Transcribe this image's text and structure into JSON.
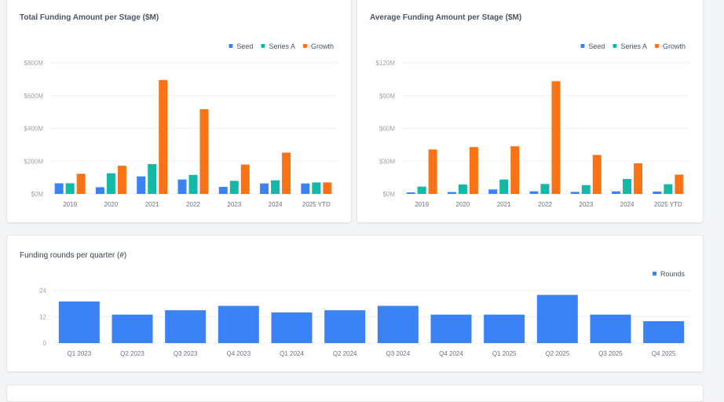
{
  "colors": {
    "Seed": "#3b82f6",
    "Series A": "#14b8a6",
    "Growth": "#f97316",
    "Rounds": "#3b82f6"
  },
  "chart_data": [
    {
      "type": "bar",
      "title": "Total Funding Amount per Stage ($M)",
      "categories": [
        "2019",
        "2020",
        "2021",
        "2022",
        "2023",
        "2024",
        "2025 YTD"
      ],
      "series": [
        {
          "name": "Seed",
          "values": [
            65,
            41,
            107,
            88,
            43,
            64,
            64
          ]
        },
        {
          "name": "Series A",
          "values": [
            65,
            126,
            182,
            116,
            80,
            83,
            70
          ]
        },
        {
          "name": "Growth",
          "values": [
            123,
            172,
            695,
            517,
            179,
            252,
            70
          ]
        }
      ],
      "ylim": [
        0,
        800
      ],
      "yticks": [
        0,
        200,
        400,
        600,
        800
      ],
      "ytick_labels": [
        "$0M",
        "$200M",
        "$400M",
        "$600M",
        "$800M"
      ],
      "grid": true,
      "legend": "top-right"
    },
    {
      "type": "bar",
      "title": "Average Funding Amount per Stage ($M)",
      "categories": [
        "2019",
        "2020",
        "2021",
        "2022",
        "2023",
        "2024",
        "2025 YTD"
      ],
      "series": [
        {
          "name": "Seed",
          "values": [
            1.4,
            1.7,
            4.1,
            2.4,
            1.9,
            2.4,
            2.2
          ]
        },
        {
          "name": "Series A",
          "values": [
            6.7,
            8.6,
            13.2,
            9.1,
            8.1,
            13.7,
            8.9
          ]
        },
        {
          "name": "Growth",
          "values": [
            40.7,
            42.9,
            43.6,
            103.2,
            35.7,
            28,
            17.7
          ]
        }
      ],
      "ylim": [
        0,
        120
      ],
      "yticks": [
        0,
        30,
        60,
        90,
        120
      ],
      "ytick_labels": [
        "$0M",
        "$30M",
        "$60M",
        "$90M",
        "$120M"
      ],
      "grid": true,
      "legend": "top-right"
    },
    {
      "type": "bar",
      "title": "Funding rounds per quarter (#)",
      "categories": [
        "Q1 2023",
        "Q2 2023",
        "Q3 2023",
        "Q4 2023",
        "Q1 2024",
        "Q2 2024",
        "Q3 2024",
        "Q4 2024",
        "Q1 2025",
        "Q2 2025",
        "Q3 2025",
        "Q4 2025"
      ],
      "series": [
        {
          "name": "Rounds",
          "values": [
            19,
            13,
            15,
            17,
            14,
            15,
            17,
            13,
            13,
            22,
            13,
            10
          ]
        }
      ],
      "ylim": [
        0,
        24
      ],
      "yticks": [
        0,
        12,
        24
      ],
      "ytick_labels": [
        "0",
        "12",
        "24"
      ],
      "grid": true,
      "legend": "top-right"
    }
  ]
}
